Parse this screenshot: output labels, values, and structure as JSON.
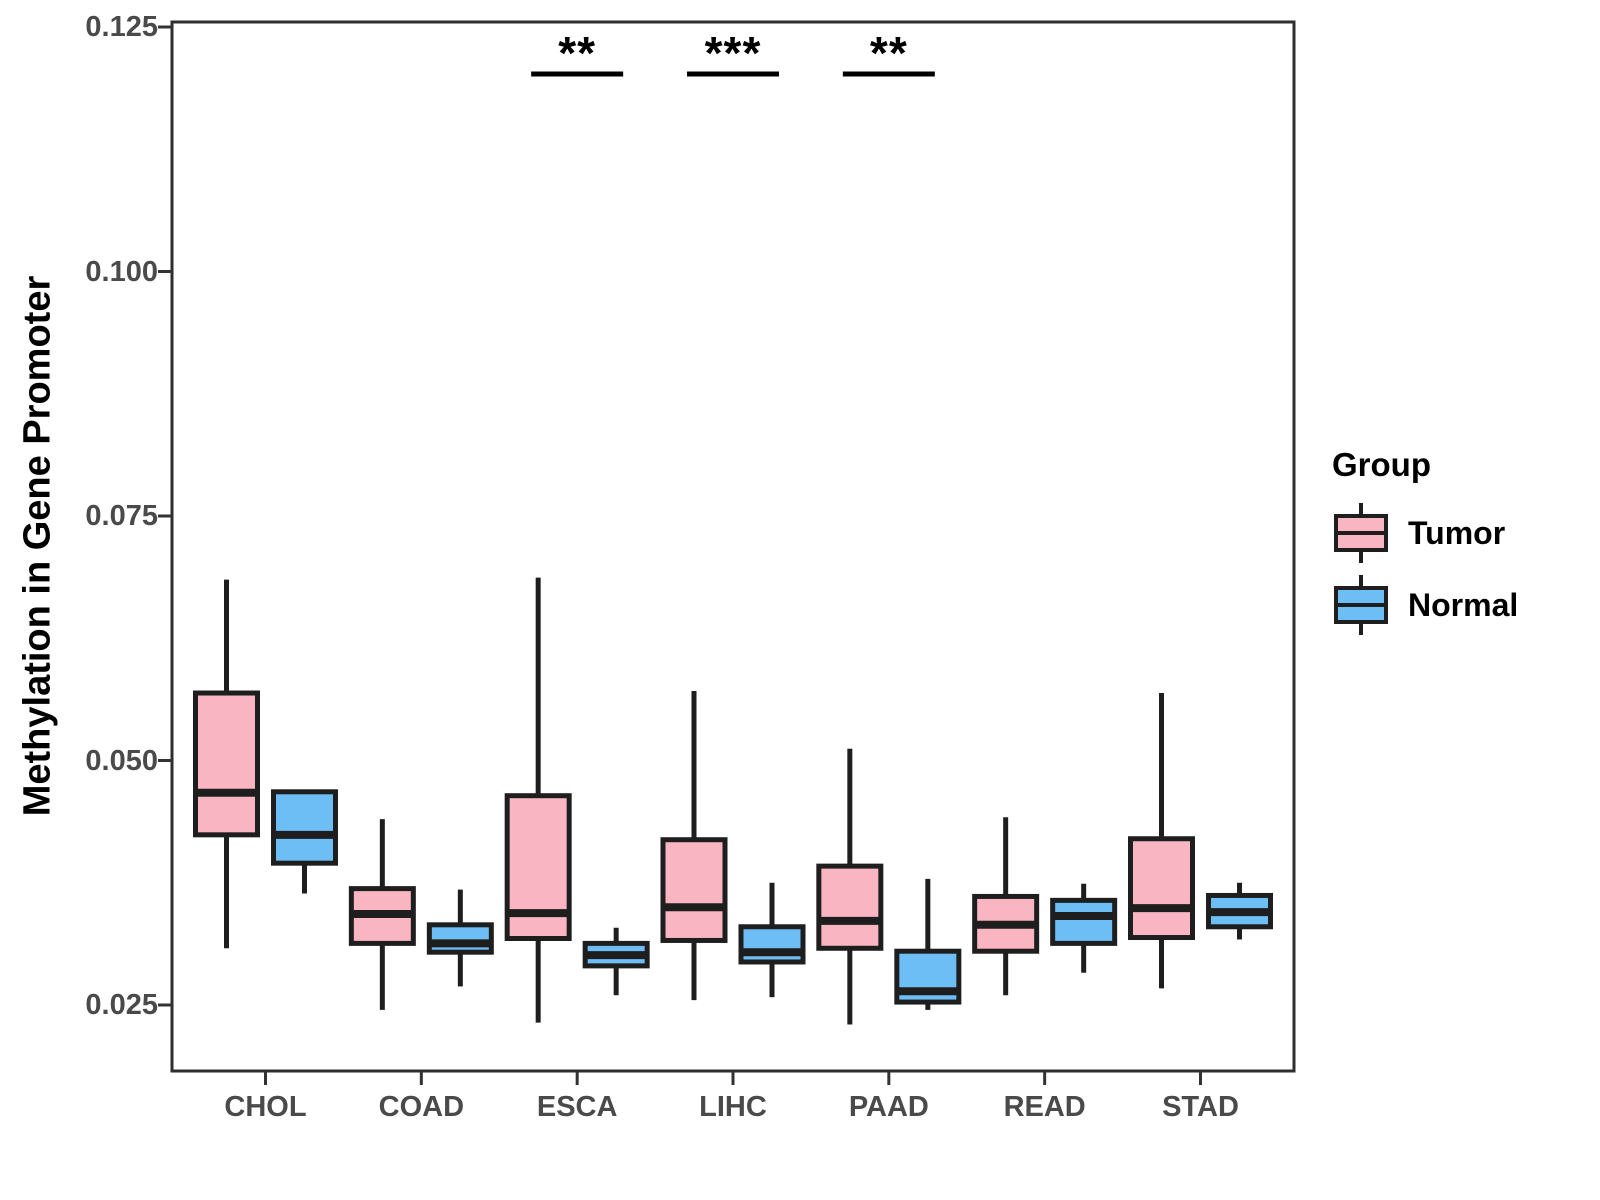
{
  "chart_data": {
    "type": "grouped_boxplot",
    "title": "",
    "xlabel": "",
    "ylabel": "Methylation in Gene Promoter",
    "categories": [
      "CHOL",
      "COAD",
      "ESCA",
      "LIHC",
      "PAAD",
      "READ",
      "STAD"
    ],
    "y_tick_labels": [
      "0.125",
      "0.100",
      "0.075",
      "0.050",
      "0.025"
    ],
    "y_tick_values": [
      0.125,
      0.1,
      0.075,
      0.05,
      0.025
    ],
    "ylim": [
      0.0182,
      0.1256
    ],
    "grid": "off",
    "legend": {
      "title": "Group",
      "position": "right"
    },
    "colors": {
      "tumor": "#F9B5C2",
      "normal": "#6DBEF4",
      "box_border": "#1E1E1E",
      "axis_text": "#4A4A4A",
      "panel_border": "#2E2E2E"
    },
    "series": [
      {
        "name": "Tumor",
        "color": "#F9B5C2",
        "boxes": [
          {
            "category": "CHOL",
            "whisker_low": 0.0308,
            "q1": 0.0424,
            "median": 0.0467,
            "q3": 0.0569,
            "whisker_high": 0.0685
          },
          {
            "category": "COAD",
            "whisker_low": 0.0245,
            "q1": 0.0313,
            "median": 0.0343,
            "q3": 0.0369,
            "whisker_high": 0.044
          },
          {
            "category": "ESCA",
            "whisker_low": 0.0232,
            "q1": 0.0318,
            "median": 0.0344,
            "q3": 0.0464,
            "whisker_high": 0.0687
          },
          {
            "category": "LIHC",
            "whisker_low": 0.0255,
            "q1": 0.0316,
            "median": 0.035,
            "q3": 0.0419,
            "whisker_high": 0.0571
          },
          {
            "category": "PAAD",
            "whisker_low": 0.023,
            "q1": 0.0308,
            "median": 0.0336,
            "q3": 0.0392,
            "whisker_high": 0.0512
          },
          {
            "category": "READ",
            "whisker_low": 0.026,
            "q1": 0.0305,
            "median": 0.0332,
            "q3": 0.0361,
            "whisker_high": 0.0442
          },
          {
            "category": "STAD",
            "whisker_low": 0.0267,
            "q1": 0.0319,
            "median": 0.0349,
            "q3": 0.042,
            "whisker_high": 0.0569
          }
        ]
      },
      {
        "name": "Normal",
        "color": "#6DBEF4",
        "boxes": [
          {
            "category": "CHOL",
            "whisker_low": 0.0364,
            "q1": 0.0395,
            "median": 0.0424,
            "q3": 0.0468,
            "whisker_high": 0.0468
          },
          {
            "category": "COAD",
            "whisker_low": 0.0269,
            "q1": 0.0304,
            "median": 0.0313,
            "q3": 0.0332,
            "whisker_high": 0.0368
          },
          {
            "category": "ESCA",
            "whisker_low": 0.026,
            "q1": 0.029,
            "median": 0.0301,
            "q3": 0.0313,
            "whisker_high": 0.0329
          },
          {
            "category": "LIHC",
            "whisker_low": 0.0258,
            "q1": 0.0294,
            "median": 0.0304,
            "q3": 0.033,
            "whisker_high": 0.0375
          },
          {
            "category": "PAAD",
            "whisker_low": 0.0245,
            "q1": 0.0253,
            "median": 0.0264,
            "q3": 0.0305,
            "whisker_high": 0.0379
          },
          {
            "category": "READ",
            "whisker_low": 0.0283,
            "q1": 0.0313,
            "median": 0.0341,
            "q3": 0.0357,
            "whisker_high": 0.0374
          },
          {
            "category": "STAD",
            "whisker_low": 0.0317,
            "q1": 0.033,
            "median": 0.0345,
            "q3": 0.0362,
            "whisker_high": 0.0375
          }
        ]
      }
    ],
    "significance": [
      {
        "category": "ESCA",
        "label": "**"
      },
      {
        "category": "LIHC",
        "label": "***"
      },
      {
        "category": "PAAD",
        "label": "**"
      }
    ]
  }
}
